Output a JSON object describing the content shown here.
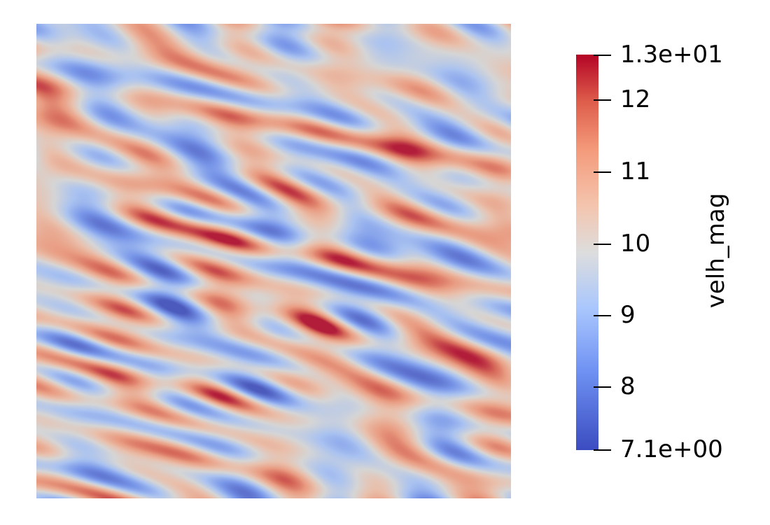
{
  "colorbar": {
    "title": "velh_mag",
    "range": [
      7.1,
      13
    ],
    "colormap": "cool-to-warm",
    "colors": {
      "low": "#3b4cc0",
      "mid": "#dddddd",
      "high": "#b40426"
    },
    "ticks": [
      {
        "value": 13,
        "label": "1.3e+01"
      },
      {
        "value": 12,
        "label": "12"
      },
      {
        "value": 11,
        "label": "11"
      },
      {
        "value": 10,
        "label": "10"
      },
      {
        "value": 9,
        "label": "9"
      },
      {
        "value": 8,
        "label": "8"
      },
      {
        "value": 7.1,
        "label": "7.1e+00"
      }
    ]
  }
}
